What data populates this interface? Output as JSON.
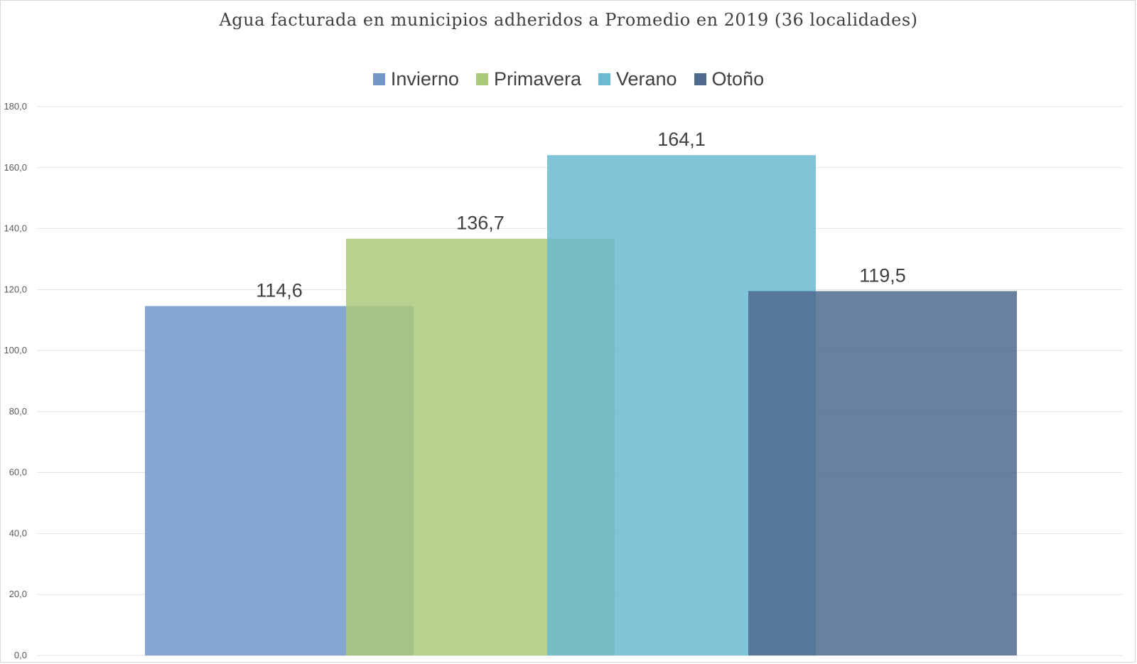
{
  "chart_data": {
    "type": "bar",
    "title": "Agua facturada en municipios adheridos a Promedio en 2019 (36 localidades)",
    "xlabel": "",
    "ylabel": "",
    "ylim": [
      0,
      180
    ],
    "yticks": [
      "0,0",
      "20,0",
      "40,0",
      "60,0",
      "80,0",
      "100,0",
      "120,0",
      "140,0",
      "160,0",
      "180,0"
    ],
    "ytick_values": [
      0,
      20,
      40,
      60,
      80,
      100,
      120,
      140,
      160,
      180
    ],
    "grid": true,
    "legend_position": "top",
    "series": [
      {
        "name": "Invierno",
        "values": [
          114.6
        ],
        "label": "114,6",
        "color": "#7097c8"
      },
      {
        "name": "Primavera",
        "values": [
          136.7
        ],
        "label": "136,7",
        "color": "#abc97a"
      },
      {
        "name": "Verano",
        "values": [
          164.1
        ],
        "label": "164,1",
        "color": "#6bbad0"
      },
      {
        "name": "Otoño",
        "values": [
          119.5
        ],
        "label": "119,5",
        "color": "#4f6a8e"
      }
    ]
  }
}
